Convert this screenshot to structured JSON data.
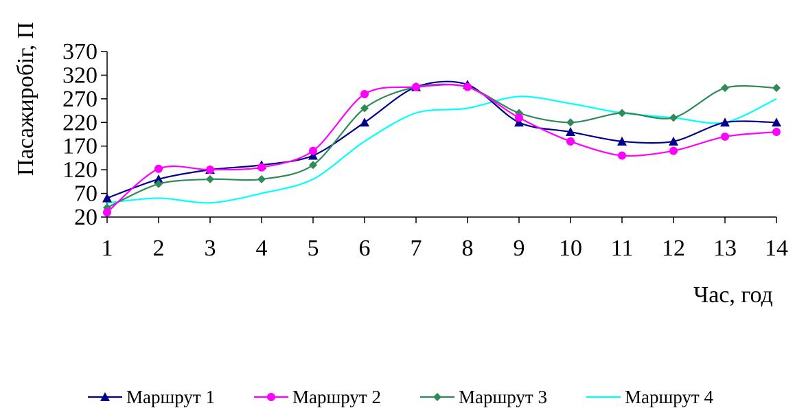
{
  "chart_data": {
    "type": "line",
    "xlabel": "Час, год",
    "ylabel": "Пасажиробіг, П",
    "x": [
      1,
      2,
      3,
      4,
      5,
      6,
      7,
      8,
      9,
      10,
      11,
      12,
      13,
      14
    ],
    "yticks": [
      20,
      70,
      120,
      170,
      220,
      270,
      320,
      370
    ],
    "ylim": [
      20,
      370
    ],
    "grid": false,
    "legend_position": "bottom",
    "series": [
      {
        "name": "Маршрут 1",
        "color": "#00008b",
        "marker": "triangle",
        "values": [
          60,
          100,
          120,
          130,
          150,
          220,
          295,
          300,
          220,
          200,
          180,
          180,
          220,
          220
        ]
      },
      {
        "name": "Маршрут 2",
        "color": "#ff00ff",
        "marker": "circle",
        "values": [
          30,
          122,
          120,
          125,
          160,
          280,
          295,
          295,
          230,
          180,
          150,
          160,
          190,
          200
        ]
      },
      {
        "name": "Маршрут 3",
        "color": "#2e8b57",
        "marker": "diamond",
        "values": [
          40,
          90,
          100,
          100,
          130,
          250,
          295,
          295,
          240,
          220,
          240,
          230,
          293,
          293
        ]
      },
      {
        "name": "Маршрут 4",
        "color": "#00ffff",
        "marker": "none",
        "values": [
          50,
          60,
          50,
          70,
          100,
          180,
          240,
          250,
          275,
          260,
          240,
          230,
          220,
          270
        ]
      }
    ]
  }
}
